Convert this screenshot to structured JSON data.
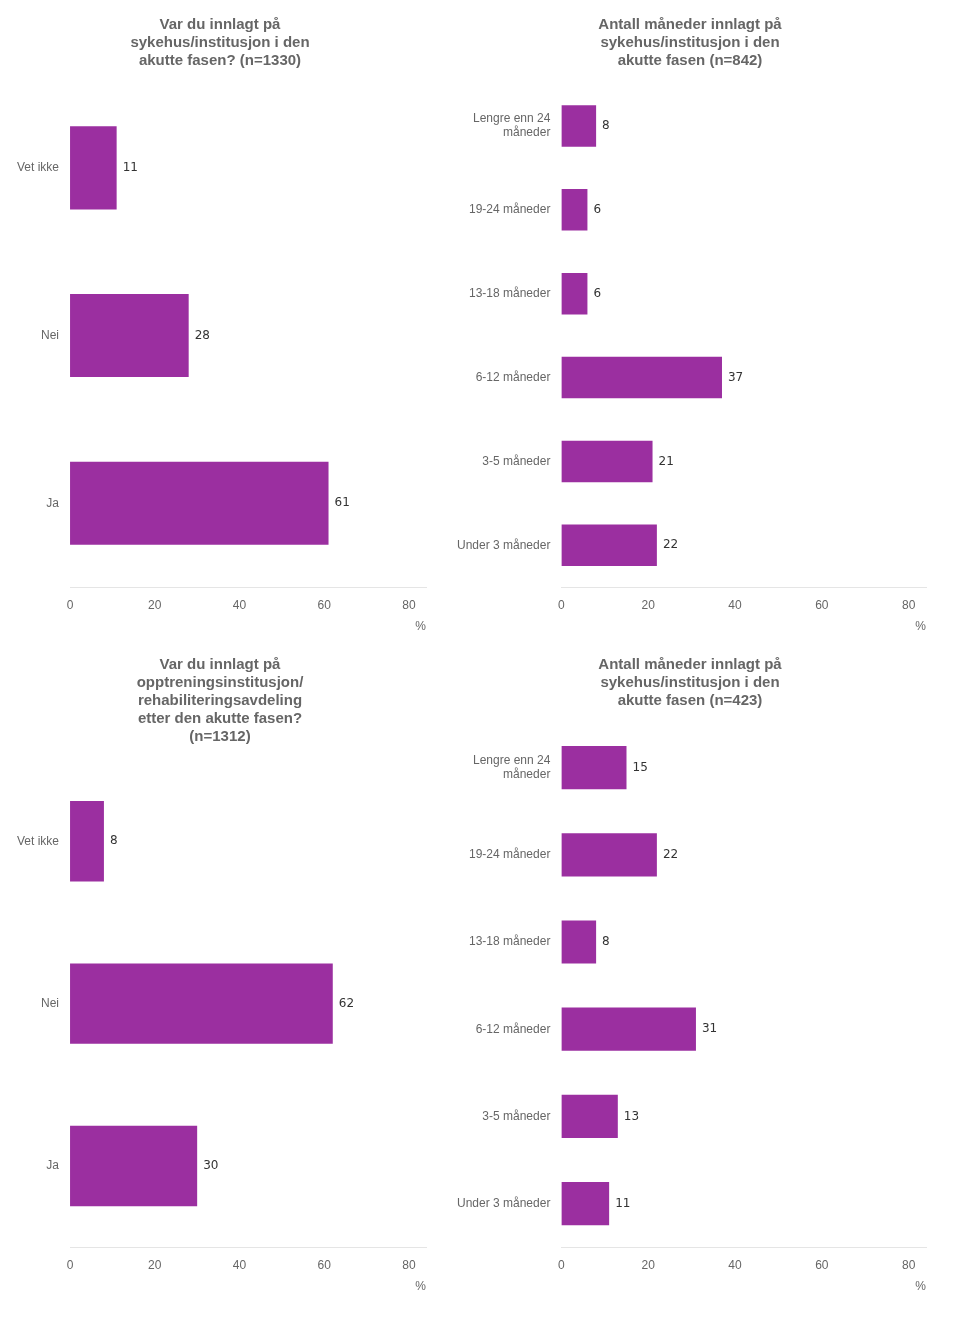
{
  "chart_data": [
    {
      "type": "bar",
      "orientation": "horizontal",
      "title": "Var du innlagt på\nsykehus/institusjon i den\nakutte fasen? (n=1330)",
      "categories": [
        "Ja",
        "Nei",
        "Vet ikke"
      ],
      "values": [
        61,
        28,
        11
      ],
      "color": "#9b2fa0",
      "xlim": [
        0,
        84
      ],
      "xticks": [
        0,
        20,
        40,
        60,
        80
      ],
      "xlabel": "%",
      "grid": false,
      "data_labels": true
    },
    {
      "type": "bar",
      "orientation": "horizontal",
      "title": "Antall måneder innlagt på\nsykehus/institusjon i den\nakutte fasen (n=842)",
      "categories": [
        "Under 3 måneder",
        "3-5 måneder",
        "6-12 måneder",
        "13-18 måneder",
        "19-24 måneder",
        "Lengre enn 24\nmåneder"
      ],
      "values": [
        22,
        21,
        37,
        6,
        6,
        8
      ],
      "color": "#9b2fa0",
      "xlim": [
        0,
        84
      ],
      "xticks": [
        0,
        20,
        40,
        60,
        80
      ],
      "xlabel": "%",
      "grid": false,
      "data_labels": true
    },
    {
      "type": "bar",
      "orientation": "horizontal",
      "title": "Var du innlagt på\nopptreningsinstitusjon/\nrehabiliteringsavdeling\netter den akutte fasen?\n(n=1312)",
      "categories": [
        "Ja",
        "Nei",
        "Vet ikke"
      ],
      "values": [
        30,
        62,
        8
      ],
      "color": "#9b2fa0",
      "xlim": [
        0,
        84
      ],
      "xticks": [
        0,
        20,
        40,
        60,
        80
      ],
      "xlabel": "%",
      "grid": false,
      "data_labels": true
    },
    {
      "type": "bar",
      "orientation": "horizontal",
      "title": "Antall måneder innlagt på\nsykehus/institusjon i den\nakutte fasen (n=423)",
      "categories": [
        "Under 3 måneder",
        "3-5 måneder",
        "6-12 måneder",
        "13-18 måneder",
        "19-24 måneder",
        "Lengre enn 24\nmåneder"
      ],
      "values": [
        11,
        13,
        31,
        8,
        22,
        15
      ],
      "color": "#9b2fa0",
      "xlim": [
        0,
        84
      ],
      "xticks": [
        0,
        20,
        40,
        60,
        80
      ],
      "xlabel": "%",
      "grid": false,
      "data_labels": true
    }
  ]
}
